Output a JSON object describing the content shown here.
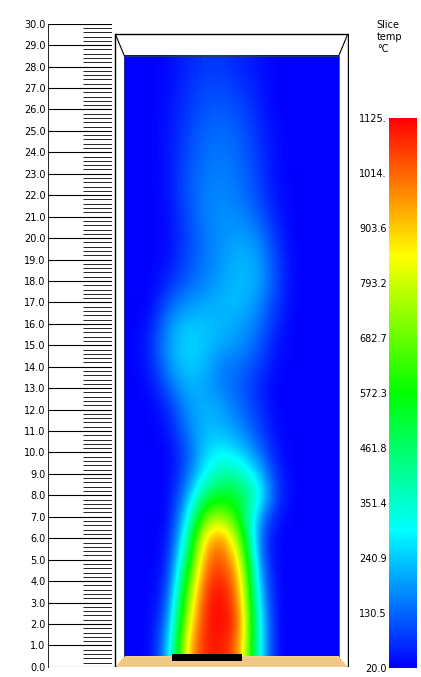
{
  "chart_data": {
    "type": "heatmap",
    "ylim": [
      0,
      30
    ],
    "yticks": [
      0.0,
      1.0,
      2.0,
      3.0,
      4.0,
      5.0,
      6.0,
      7.0,
      8.0,
      9.0,
      10.0,
      11.0,
      12.0,
      13.0,
      14.0,
      15.0,
      16.0,
      17.0,
      18.0,
      19.0,
      20.0,
      21.0,
      22.0,
      23.0,
      24.0,
      25.0,
      26.0,
      27.0,
      28.0,
      29.0,
      30.0
    ],
    "y_range": [
      0.5,
      28.5
    ],
    "cells": [
      [
        20,
        20,
        200,
        900,
        1100,
        1100,
        1000,
        300,
        20,
        20,
        20,
        20
      ],
      [
        20,
        20,
        150,
        800,
        1100,
        1125,
        1050,
        300,
        20,
        20,
        20,
        20
      ],
      [
        20,
        20,
        100,
        700,
        1100,
        1125,
        1000,
        250,
        20,
        20,
        20,
        20
      ],
      [
        20,
        20,
        60,
        600,
        1050,
        1100,
        950,
        200,
        20,
        20,
        20,
        20
      ],
      [
        20,
        20,
        40,
        450,
        1000,
        1050,
        850,
        150,
        20,
        20,
        20,
        20
      ],
      [
        20,
        20,
        30,
        350,
        900,
        1000,
        700,
        120,
        20,
        20,
        20,
        20
      ],
      [
        20,
        20,
        20,
        250,
        700,
        750,
        550,
        200,
        40,
        20,
        20,
        20
      ],
      [
        20,
        20,
        20,
        180,
        450,
        550,
        500,
        350,
        80,
        20,
        20,
        20
      ],
      [
        20,
        20,
        20,
        120,
        300,
        400,
        380,
        250,
        60,
        20,
        20,
        20
      ],
      [
        20,
        20,
        20,
        100,
        250,
        300,
        250,
        150,
        40,
        20,
        20,
        20
      ],
      [
        20,
        20,
        40,
        150,
        230,
        220,
        180,
        100,
        30,
        20,
        20,
        20
      ],
      [
        20,
        20,
        60,
        180,
        220,
        200,
        140,
        80,
        20,
        20,
        20,
        20
      ],
      [
        20,
        30,
        120,
        220,
        200,
        160,
        120,
        60,
        20,
        20,
        20,
        20
      ],
      [
        20,
        50,
        180,
        250,
        220,
        150,
        140,
        90,
        30,
        20,
        20,
        20
      ],
      [
        20,
        60,
        200,
        260,
        240,
        200,
        180,
        120,
        40,
        20,
        20,
        20
      ],
      [
        20,
        40,
        180,
        240,
        230,
        220,
        200,
        150,
        60,
        20,
        20,
        20
      ],
      [
        20,
        20,
        120,
        180,
        200,
        220,
        230,
        180,
        80,
        20,
        20,
        20
      ],
      [
        20,
        20,
        60,
        120,
        160,
        200,
        230,
        210,
        100,
        20,
        20,
        20
      ],
      [
        20,
        20,
        40,
        100,
        150,
        190,
        220,
        200,
        90,
        20,
        20,
        20
      ],
      [
        20,
        20,
        30,
        90,
        150,
        180,
        200,
        170,
        70,
        20,
        20,
        20
      ],
      [
        20,
        20,
        30,
        100,
        160,
        180,
        170,
        130,
        50,
        20,
        20,
        20
      ],
      [
        20,
        20,
        40,
        110,
        160,
        170,
        150,
        100,
        40,
        20,
        20,
        20
      ],
      [
        20,
        20,
        40,
        110,
        150,
        160,
        140,
        90,
        30,
        20,
        20,
        20
      ],
      [
        20,
        20,
        40,
        100,
        140,
        150,
        130,
        80,
        30,
        20,
        20,
        20
      ],
      [
        20,
        20,
        40,
        90,
        130,
        140,
        120,
        70,
        30,
        20,
        20,
        20
      ],
      [
        20,
        20,
        40,
        80,
        110,
        120,
        100,
        60,
        20,
        20,
        20,
        20
      ],
      [
        20,
        20,
        30,
        70,
        100,
        100,
        80,
        50,
        20,
        20,
        20,
        20
      ],
      [
        20,
        20,
        30,
        60,
        80,
        80,
        60,
        40,
        20,
        20,
        20,
        20
      ]
    ],
    "colorbar": {
      "title": "Slice\ntemp\n°C",
      "range": [
        20,
        1125
      ],
      "ticks": [
        20.0,
        130.5,
        240.9,
        351.4,
        461.8,
        572.3,
        682.7,
        793.2,
        903.6,
        {
          "value": 1014,
          "label": "1014."
        },
        {
          "value": 1125,
          "label": "1125."
        }
      ]
    }
  }
}
